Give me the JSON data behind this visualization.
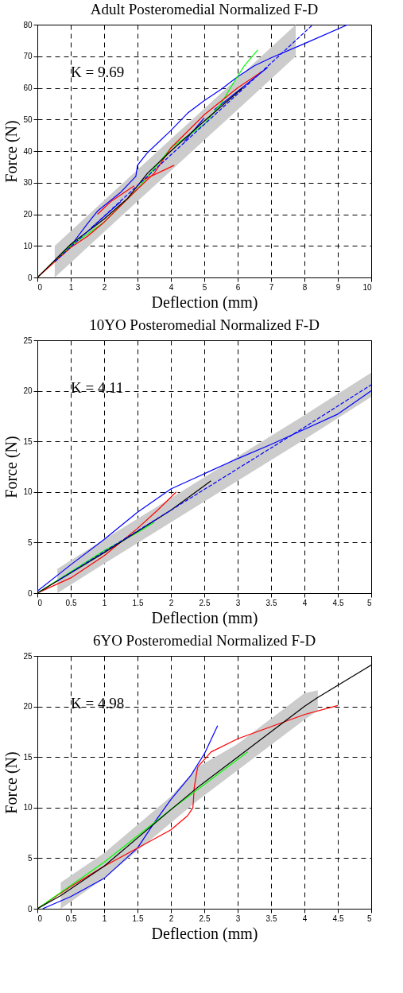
{
  "chart_data": [
    {
      "type": "line",
      "title": "Adult Posteromedial Normalized F-D",
      "xlabel": "Deflection (mm)",
      "ylabel": "Force (N)",
      "xlim": [
        0,
        10
      ],
      "ylim": [
        0,
        80
      ],
      "xticks": [
        0,
        1,
        2,
        3,
        4,
        5,
        6,
        7,
        8,
        9,
        10
      ],
      "yticks": [
        0,
        10,
        20,
        30,
        40,
        50,
        60,
        70,
        80
      ],
      "grid": true,
      "legend": false,
      "annotations": [
        "K = 9.69"
      ],
      "series": [
        {
          "color": "#0000ff",
          "line_style": "dashed",
          "x": [
            0.52,
            2,
            4,
            6,
            7.74,
            8.25
          ],
          "values": [
            5.0,
            19.4,
            38.8,
            58.1,
            75.0,
            80
          ],
          "lower": [
            0.0,
            14.4,
            33.8,
            53.1,
            70.0,
            null
          ],
          "upper": [
            10.0,
            24.4,
            43.8,
            63.1,
            80.0,
            null
          ]
        },
        {
          "color": "#0000ff",
          "x": [
            0,
            0.5,
            1,
            1.5,
            1.8,
            2.5,
            2.95,
            3.0,
            3.3,
            4,
            4.5,
            5,
            5.5,
            6,
            6.5,
            7,
            8,
            9.3
          ],
          "values": [
            0,
            5,
            10,
            17,
            21,
            27,
            32,
            35.5,
            39.5,
            46.5,
            52,
            56,
            59.5,
            63.5,
            67,
            69.5,
            74,
            80
          ]
        },
        {
          "color": "#0000ff",
          "x": [
            1.6,
            2.5
          ],
          "values": [
            15.5,
            24
          ]
        },
        {
          "color": "#0000ff",
          "x": [
            4.4,
            5
          ],
          "values": [
            43,
            50.5
          ]
        },
        {
          "color": "#0000ff",
          "x": [
            5.3,
            6.9
          ],
          "values": [
            53,
            66.5
          ]
        },
        {
          "color": "#00ff00",
          "x": [
            0,
            1,
            2,
            3,
            4,
            5,
            5.5,
            5.9,
            6.2,
            6.6
          ],
          "values": [
            0,
            10,
            17.5,
            28,
            41,
            48.5,
            55,
            62,
            67,
            72
          ]
        },
        {
          "color": "#ff0000",
          "x": [
            0,
            1,
            1.5,
            2,
            3,
            3.5,
            4,
            5,
            6,
            6.7
          ],
          "values": [
            0,
            9.5,
            13,
            17.5,
            28,
            33,
            41,
            51.5,
            60,
            65
          ]
        },
        {
          "color": "#ff0000",
          "x": [
            1.8,
            2.2,
            2.9
          ],
          "values": [
            20,
            24,
            29
          ]
        },
        {
          "color": "#ff0000",
          "x": [
            3.2,
            4.1
          ],
          "values": [
            31,
            35.5
          ]
        },
        {
          "color": "#000000",
          "x": [
            0,
            1,
            2,
            2.7,
            3.3,
            4,
            5,
            6.15
          ],
          "values": [
            0,
            10.5,
            18.5,
            25,
            33,
            40,
            49.5,
            60
          ]
        }
      ]
    },
    {
      "type": "line",
      "title": "10YO Posteromedial Normalized F-D",
      "xlabel": "Deflection (mm)",
      "ylabel": "Force (N)",
      "xlim": [
        0,
        5
      ],
      "ylim": [
        0,
        25
      ],
      "xticks": [
        0,
        0.5,
        1,
        1.5,
        2,
        2.5,
        3,
        3.5,
        4,
        4.5,
        5
      ],
      "yticks": [
        0,
        5,
        10,
        15,
        20,
        25
      ],
      "grid": true,
      "legend": false,
      "annotations": [
        "K = 4.11"
      ],
      "series": [
        {
          "color": "#0000ff",
          "line_style": "dashed",
          "x": [
            0.3,
            1,
            2,
            3,
            4,
            5
          ],
          "values": [
            1.2,
            4.1,
            8.2,
            12.3,
            16.4,
            20.6
          ],
          "lower": [
            0.0,
            2.9,
            7.0,
            11.1,
            15.2,
            19.4
          ],
          "upper": [
            2.4,
            5.3,
            9.4,
            13.5,
            17.6,
            21.8
          ]
        },
        {
          "color": "#0000ff",
          "x": [
            0,
            0.5,
            1,
            1.5,
            2,
            2.5,
            3,
            3.5,
            4,
            4.5,
            5
          ],
          "values": [
            0.2,
            2.8,
            5.3,
            8,
            10.3,
            11.8,
            13.3,
            14.7,
            16.2,
            17.7,
            20
          ]
        },
        {
          "color": "#ff0000",
          "x": [
            0,
            0.5,
            1,
            1.5,
            1.8,
            2.08
          ],
          "values": [
            0,
            1.5,
            3.7,
            6.4,
            8.2,
            10
          ]
        },
        {
          "color": "#00ff00",
          "x": [
            0,
            0.5,
            1,
            1.5,
            1.75
          ],
          "values": [
            0,
            2.1,
            4.2,
            6,
            7
          ]
        },
        {
          "color": "#000000",
          "x": [
            0,
            1,
            2,
            2.6
          ],
          "values": [
            0,
            4,
            8.2,
            11.1
          ]
        }
      ]
    },
    {
      "type": "line",
      "title": "6YO Posteromedial Normalized F-D",
      "xlabel": "Deflection (mm)",
      "ylabel": "Force (N)",
      "xlim": [
        0,
        5
      ],
      "ylim": [
        0,
        25
      ],
      "xticks": [
        0,
        0.5,
        1,
        1.5,
        2,
        2.5,
        3,
        3.5,
        4,
        4.5,
        5
      ],
      "yticks": [
        0,
        5,
        10,
        15,
        20,
        25
      ],
      "grid": true,
      "legend": false,
      "annotations": [
        "K = 4.98"
      ],
      "series": [
        {
          "color": "#0000ff",
          "x": [
            0.08,
            0.5,
            1,
            1.5,
            1.75,
            2,
            2.3,
            2.5,
            2.7
          ],
          "values": [
            0,
            1.2,
            3,
            6,
            8.5,
            10.8,
            13.2,
            15.3,
            18.1
          ]
        },
        {
          "color": "#ff0000",
          "x": [
            0,
            0.5,
            1,
            1.5,
            2,
            2.25,
            2.33,
            2.35,
            2.4,
            2.6,
            3,
            3.5,
            4,
            4.5
          ],
          "values": [
            0,
            2.2,
            4.2,
            6,
            7.8,
            9.2,
            10,
            12,
            14,
            15.5,
            16.8,
            18,
            19.2,
            20.1
          ]
        },
        {
          "color": "#00ff00",
          "x": [
            0,
            1,
            2,
            3.15
          ],
          "values": [
            0,
            4.6,
            9.8,
            15.5
          ]
        },
        {
          "color": "#000000",
          "x": [
            0,
            0.35,
            1,
            2,
            2.4,
            3,
            4,
            4.2,
            5
          ],
          "values": [
            0,
            1.3,
            4.2,
            9.8,
            12,
            15,
            20,
            20.9,
            24.1
          ],
          "lower": [
            null,
            0.0,
            3.0,
            8.5,
            10.7,
            13.7,
            18.7,
            19.6,
            null
          ],
          "upper": [
            null,
            2.6,
            5.5,
            11.1,
            14.0,
            16.3,
            21.3,
            21.6,
            null
          ]
        }
      ]
    }
  ]
}
